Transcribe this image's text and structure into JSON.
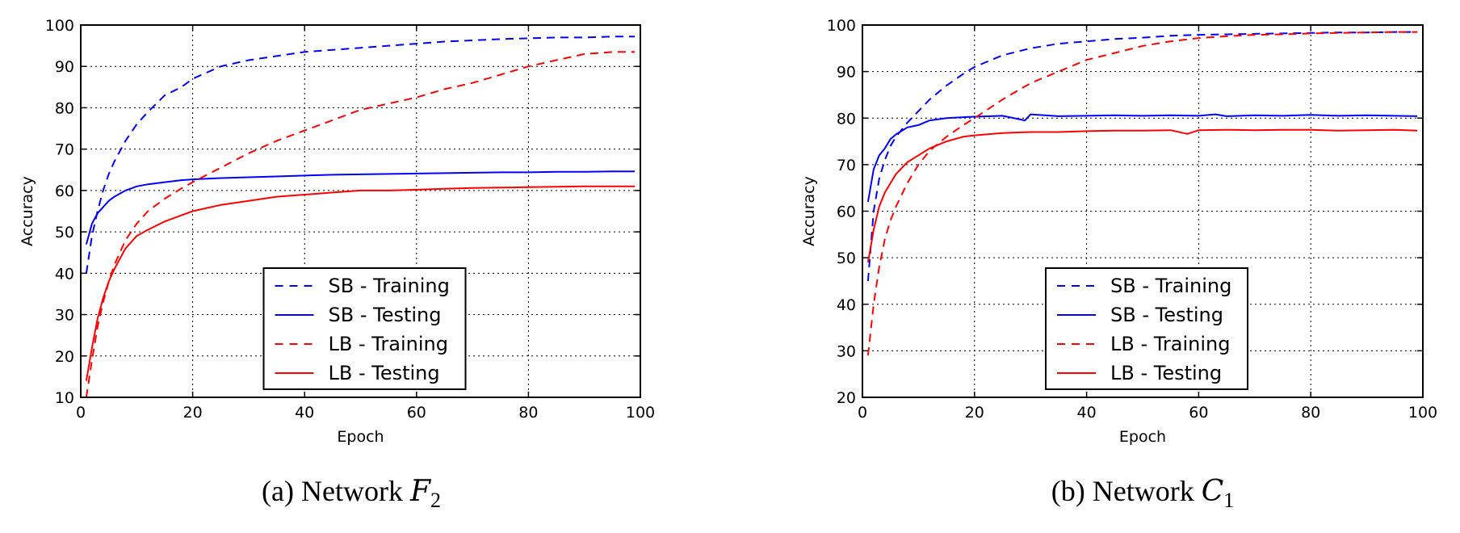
{
  "colors": {
    "sb": "#0000ff",
    "lb": "#ff0000",
    "grid": "#000000"
  },
  "chart_data": [
    {
      "type": "line",
      "caption_prefix": "(a) Network ",
      "caption_var": "F",
      "caption_sub": "2",
      "xlabel": "Epoch",
      "ylabel": "Accuracy",
      "xlim": [
        0,
        100
      ],
      "ylim": [
        10,
        100
      ],
      "xticks": [
        0,
        20,
        40,
        60,
        80,
        100
      ],
      "yticks": [
        10,
        20,
        30,
        40,
        50,
        60,
        70,
        80,
        90,
        100
      ],
      "grid": true,
      "legend_position": "lower-center",
      "series": [
        {
          "name": "SB - Training",
          "color": "blue",
          "style": "dashed",
          "x": [
            1,
            2,
            3,
            4,
            5,
            6,
            8,
            10,
            12,
            15,
            18,
            20,
            25,
            30,
            35,
            40,
            45,
            50,
            55,
            60,
            65,
            70,
            75,
            80,
            85,
            90,
            95,
            99
          ],
          "y": [
            40,
            49,
            55,
            60,
            64,
            67,
            72,
            76,
            79,
            83,
            85,
            87,
            90,
            91.5,
            92.5,
            93.5,
            94,
            94.5,
            95,
            95.5,
            96,
            96.3,
            96.6,
            96.8,
            97,
            97,
            97.2,
            97.2
          ]
        },
        {
          "name": "SB - Testing",
          "color": "blue",
          "style": "solid",
          "x": [
            1,
            2,
            3,
            4,
            5,
            6,
            8,
            10,
            12,
            15,
            18,
            20,
            25,
            30,
            35,
            40,
            45,
            50,
            55,
            60,
            65,
            70,
            75,
            80,
            85,
            90,
            95,
            99
          ],
          "y": [
            47,
            52,
            54.5,
            56,
            57.5,
            58.5,
            60,
            61,
            61.5,
            62,
            62.5,
            62.7,
            63,
            63.2,
            63.4,
            63.6,
            63.8,
            63.9,
            64,
            64.1,
            64.2,
            64.3,
            64.4,
            64.4,
            64.5,
            64.5,
            64.6,
            64.6
          ]
        },
        {
          "name": "LB - Training",
          "color": "red",
          "style": "dashed",
          "x": [
            1,
            2,
            3,
            4,
            5,
            6,
            8,
            10,
            12,
            15,
            18,
            20,
            25,
            30,
            35,
            40,
            45,
            50,
            55,
            60,
            65,
            70,
            75,
            80,
            85,
            90,
            95,
            99
          ],
          "y": [
            10,
            19,
            27,
            33,
            38,
            42,
            48,
            52,
            55,
            58,
            60.5,
            62,
            65.5,
            69,
            72,
            74.5,
            77,
            79.5,
            81,
            82.5,
            84.5,
            86,
            88,
            90,
            91.5,
            93,
            93.5,
            93.5
          ]
        },
        {
          "name": "LB - Testing",
          "color": "red",
          "style": "solid",
          "x": [
            1,
            2,
            3,
            4,
            5,
            6,
            8,
            10,
            12,
            15,
            18,
            20,
            25,
            30,
            35,
            40,
            45,
            50,
            55,
            60,
            65,
            70,
            75,
            80,
            85,
            90,
            95,
            99
          ],
          "y": [
            14,
            22,
            29,
            34,
            38,
            41,
            46,
            49,
            50.5,
            52.5,
            54,
            55,
            56.5,
            57.5,
            58.5,
            59,
            59.5,
            60,
            60,
            60.2,
            60.4,
            60.6,
            60.7,
            60.8,
            60.9,
            61,
            61,
            61
          ]
        }
      ]
    },
    {
      "type": "line",
      "caption_prefix": "(b) Network ",
      "caption_var": "C",
      "caption_sub": "1",
      "xlabel": "Epoch",
      "ylabel": "Accuracy",
      "xlim": [
        0,
        100
      ],
      "ylim": [
        20,
        100
      ],
      "xticks": [
        0,
        20,
        40,
        60,
        80,
        100
      ],
      "yticks": [
        20,
        30,
        40,
        50,
        60,
        70,
        80,
        90,
        100
      ],
      "grid": true,
      "legend_position": "lower-center",
      "series": [
        {
          "name": "SB - Training",
          "color": "blue",
          "style": "dashed",
          "x": [
            1,
            2,
            3,
            4,
            5,
            6,
            8,
            10,
            12,
            15,
            18,
            20,
            25,
            30,
            35,
            40,
            45,
            50,
            55,
            60,
            65,
            70,
            75,
            80,
            85,
            90,
            95,
            99
          ],
          "y": [
            45,
            60,
            67,
            71,
            74,
            76,
            79,
            81.5,
            84,
            87,
            89.5,
            91,
            93.5,
            95,
            96,
            96.5,
            97,
            97.3,
            97.7,
            97.9,
            98,
            98.1,
            98.2,
            98.3,
            98.4,
            98.4,
            98.5,
            98.5
          ]
        },
        {
          "name": "SB - Testing",
          "color": "blue",
          "style": "solid",
          "x": [
            1,
            2,
            3,
            4,
            5,
            6,
            8,
            10,
            12,
            15,
            18,
            20,
            25,
            29,
            30,
            35,
            40,
            45,
            50,
            55,
            60,
            63,
            65,
            70,
            75,
            80,
            85,
            90,
            95,
            99
          ],
          "y": [
            62,
            69,
            72,
            73.5,
            75.5,
            76.5,
            78,
            78.5,
            79.5,
            80,
            80.2,
            80.3,
            80.5,
            79.5,
            80.8,
            80.4,
            80.5,
            80.6,
            80.5,
            80.6,
            80.5,
            80.8,
            80.4,
            80.6,
            80.5,
            80.7,
            80.5,
            80.6,
            80.5,
            80.4
          ]
        },
        {
          "name": "LB - Training",
          "color": "red",
          "style": "dashed",
          "x": [
            1,
            2,
            3,
            4,
            5,
            6,
            8,
            10,
            12,
            15,
            18,
            20,
            25,
            30,
            35,
            40,
            45,
            50,
            55,
            60,
            65,
            70,
            75,
            80,
            85,
            90,
            95,
            99
          ],
          "y": [
            29,
            40,
            48,
            54,
            58,
            61,
            66,
            70,
            73,
            76,
            78.5,
            80,
            84,
            87.5,
            90,
            92.5,
            94,
            95.5,
            96.5,
            97.2,
            97.6,
            97.9,
            98,
            98.2,
            98.3,
            98.4,
            98.5,
            98.5
          ]
        },
        {
          "name": "LB - Testing",
          "color": "red",
          "style": "solid",
          "x": [
            1,
            2,
            3,
            4,
            5,
            6,
            8,
            10,
            12,
            15,
            18,
            20,
            25,
            30,
            35,
            40,
            45,
            50,
            55,
            58,
            60,
            65,
            70,
            75,
            80,
            85,
            90,
            95,
            99
          ],
          "y": [
            49,
            56,
            61,
            64,
            66,
            68,
            70.5,
            72,
            73.5,
            75,
            76,
            76.3,
            76.8,
            77,
            77,
            77.2,
            77.3,
            77.3,
            77.4,
            76.6,
            77.4,
            77.5,
            77.4,
            77.5,
            77.5,
            77.3,
            77.4,
            77.5,
            77.3
          ]
        }
      ]
    }
  ]
}
